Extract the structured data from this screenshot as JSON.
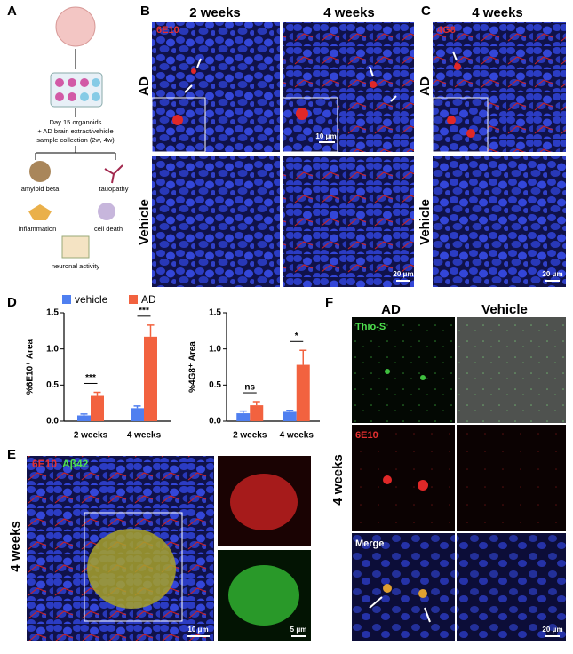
{
  "panel_a": {
    "label": "A",
    "steps": [
      "Day 15 organoids",
      "+ AD brain extract/vehicle",
      "sample collection (2w, 4w)"
    ],
    "outcomes": [
      "amyloid beta",
      "tauopathy",
      "inflammation",
      "cell death",
      "neuronal activity"
    ]
  },
  "panel_b": {
    "label": "B",
    "columns": [
      "2 weeks",
      "4 weeks"
    ],
    "rows": [
      "AD",
      "Vehicle"
    ],
    "stain": "6E10",
    "inset_scale": "10 μm",
    "scale": "20 μm"
  },
  "panel_c": {
    "label": "C",
    "column": "4 weeks",
    "rows": [
      "AD",
      "Vehicle"
    ],
    "stain": "4G8",
    "scale": "20 μm"
  },
  "panel_d_label": "D",
  "chart_data": [
    {
      "type": "bar",
      "y_label": "%6E10⁺ Area",
      "categories": [
        "2 weeks",
        "4 weeks"
      ],
      "series": [
        {
          "name": "vehicle",
          "color": "#4f7ff0",
          "values": [
            0.08,
            0.18
          ],
          "errors": [
            0.02,
            0.03
          ]
        },
        {
          "name": "AD",
          "color": "#f2623f",
          "values": [
            0.35,
            1.17
          ],
          "errors": [
            0.05,
            0.16
          ]
        }
      ],
      "annotations": [
        "***",
        "***"
      ],
      "ylim": [
        0,
        1.5
      ],
      "yticks": [
        {
          "value": 0,
          "label": "0.0"
        },
        0.5,
        {
          "value": 1,
          "label": "1.0"
        },
        1.5
      ]
    },
    {
      "type": "bar",
      "y_label": "%4G8⁺ Area",
      "categories": [
        "2 weeks",
        "4 weeks"
      ],
      "series": [
        {
          "color": "#4f7ff0",
          "values": [
            0.11,
            0.13
          ],
          "errors": [
            0.03,
            0.02
          ]
        },
        {
          "color": "#f2623f",
          "values": [
            0.22,
            0.78
          ],
          "errors": [
            0.05,
            0.2
          ]
        }
      ],
      "annotations": [
        "ns",
        "*"
      ],
      "ylim": [
        0,
        1.5
      ],
      "yticks": [
        {
          "value": 0,
          "label": "0.0"
        },
        0.5,
        {
          "value": 1,
          "label": "1.0"
        },
        1.5
      ]
    }
  ],
  "panel_e": {
    "label": "E",
    "stains": [
      "6E10",
      "Aβ42"
    ],
    "row": "4 weeks",
    "scales": [
      "10 μm",
      "5 μm"
    ]
  },
  "panel_f": {
    "label": "F",
    "columns": [
      "AD",
      "Vehicle"
    ],
    "rows": [
      "Thio-S",
      "6E10",
      "Merge"
    ],
    "side": "4 weeks",
    "scale": "20 μm"
  }
}
